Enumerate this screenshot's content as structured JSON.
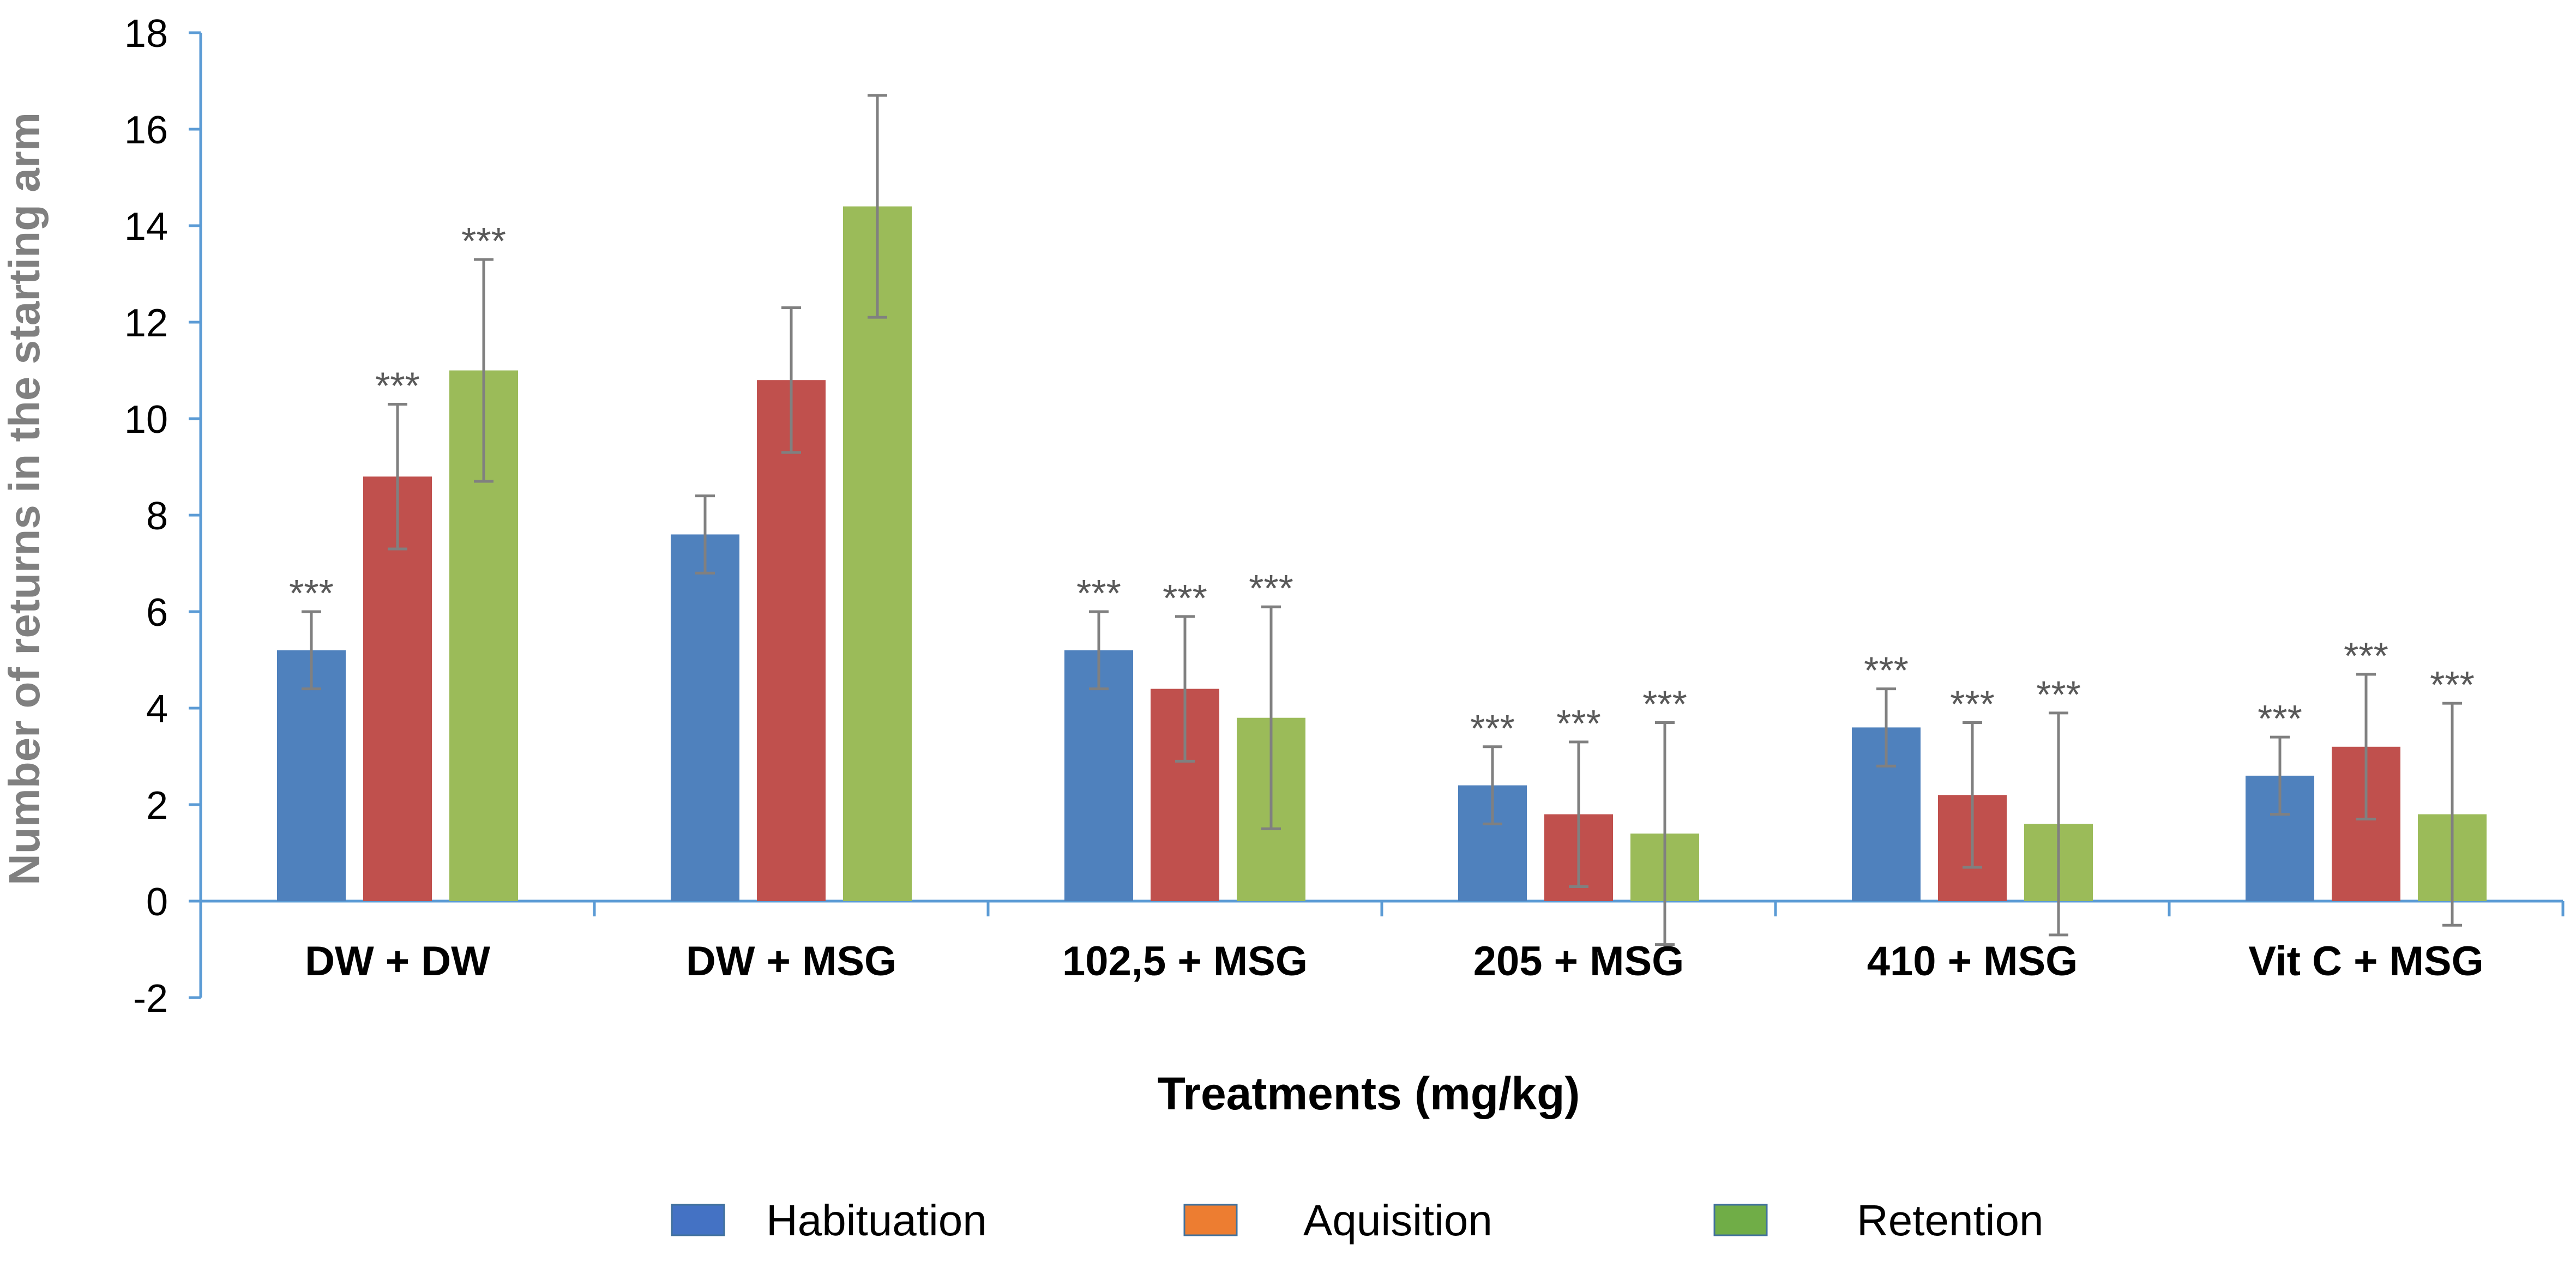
{
  "chart_data": {
    "type": "bar",
    "title": "",
    "xlabel": "Treatments (mg/kg)",
    "ylabel": "Number of returns in the starting arm",
    "ylim": [
      -2,
      18
    ],
    "yticks": [
      "-2",
      "0",
      "2",
      "4",
      "6",
      "8",
      "10",
      "12",
      "14",
      "16",
      "18"
    ],
    "grid": false,
    "legend_position": "bottom",
    "categories": [
      "DW + DW",
      "DW + MSG",
      "102,5 + MSG",
      "205 + MSG",
      "410 + MSG",
      "Vit C + MSG"
    ],
    "series": [
      {
        "name": "Habituation",
        "color": "#4F81BD",
        "legend_color": "#4472C4",
        "values": [
          5.2,
          7.6,
          5.2,
          2.4,
          3.6,
          2.6
        ],
        "errors": [
          0.8,
          0.8,
          0.8,
          0.8,
          0.8,
          0.8
        ],
        "annotations": [
          "***",
          "",
          "***",
          "***",
          "***",
          "***"
        ]
      },
      {
        "name": "Aquisition",
        "color": "#C0504D",
        "legend_color": "#ED7D31",
        "values": [
          8.8,
          10.8,
          4.4,
          1.8,
          2.2,
          3.2
        ],
        "errors": [
          1.5,
          1.5,
          1.5,
          1.5,
          1.5,
          1.5
        ],
        "annotations": [
          "***",
          "",
          "***",
          "***",
          "***",
          "***"
        ]
      },
      {
        "name": "Retention",
        "color": "#9BBB59",
        "legend_color": "#70AD47",
        "values": [
          11.0,
          14.4,
          3.8,
          1.4,
          1.6,
          1.8
        ],
        "errors": [
          2.3,
          2.3,
          2.3,
          2.3,
          2.3,
          2.3
        ],
        "annotations": [
          "***",
          "",
          "***",
          "***",
          "***",
          "***"
        ]
      }
    ]
  },
  "colors": {
    "axis": "#5B9BD5",
    "error_bar": "#808080"
  }
}
